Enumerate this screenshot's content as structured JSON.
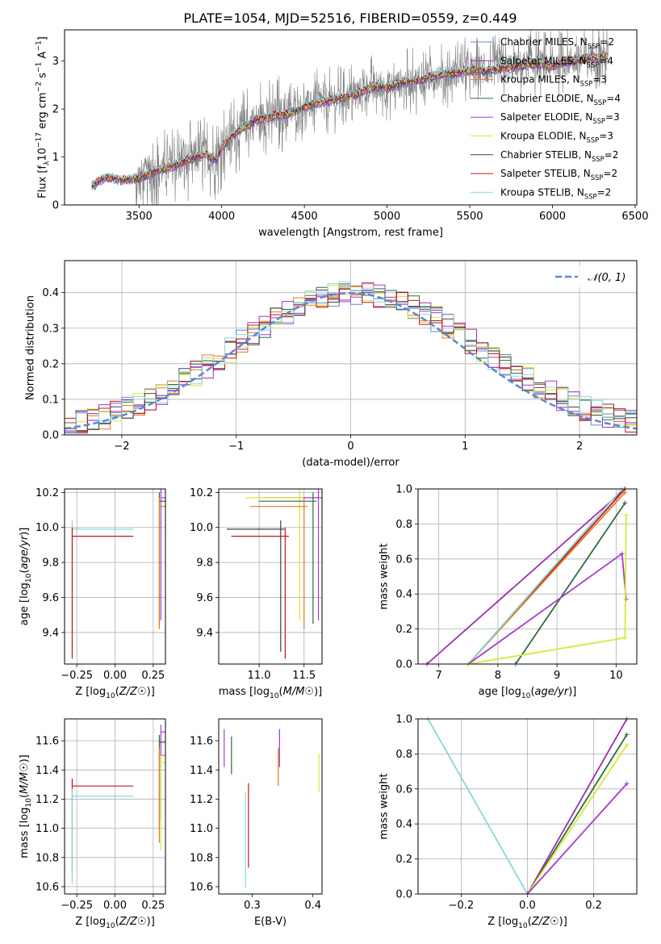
{
  "figure_title": "PLATE=1054, MJD=52516, FIBERID=0559, z=0.449",
  "colors": {
    "observed_spectrum": "#808080",
    "Chabrier MILES": "#5b8fd8",
    "Salpeter MILES": "#9b30b0",
    "Kroupa MILES": "#e07b1e",
    "Chabrier ELODIE": "#2e6b3e",
    "Salpeter ELODIE": "#a63bd0",
    "Kroupa ELODIE": "#d7e83a",
    "Chabrier STELIB": "#404040",
    "Salpeter STELIB": "#c0181c",
    "Kroupa STELIB": "#88d8d8",
    "normal_curve": "#5b87d4",
    "grid": "#b0b0b0"
  },
  "chart_data": [
    {
      "id": "spectrum",
      "type": "line",
      "xlabel": "wavelength [Angstrom, rest frame]",
      "ylabel": "Flux [f_λ10^-17 erg cm^-2 s^-1 A^-1]",
      "xlim": [
        3050,
        6510
      ],
      "ylim": [
        0,
        3.65
      ],
      "xticks": [
        3500,
        4000,
        4500,
        5000,
        5500,
        6000,
        6500
      ],
      "yticks": [
        0,
        1,
        2,
        3
      ],
      "grid": false,
      "legend_position": "top-right",
      "legend": [
        "Chabrier MILES, N_SSP=2",
        "Salpeter MILES, N_SSP=4",
        "Kroupa MILES, N_SSP=3",
        "Chabrier ELODIE, N_SSP=4",
        "Salpeter ELODIE, N_SSP=3",
        "Kroupa ELODIE, N_SSP=3",
        "Chabrier STELIB, N_SSP=2",
        "Salpeter STELIB, N_SSP=2",
        "Kroupa STELIB, N_SSP=2"
      ],
      "model_continuum_points": [
        [
          3210,
          0.38
        ],
        [
          3300,
          0.58
        ],
        [
          3400,
          0.52
        ],
        [
          3500,
          0.56
        ],
        [
          3600,
          0.7
        ],
        [
          3700,
          0.8
        ],
        [
          3800,
          0.95
        ],
        [
          3900,
          1.05
        ],
        [
          3970,
          0.95
        ],
        [
          4000,
          1.2
        ],
        [
          4100,
          1.55
        ],
        [
          4200,
          1.75
        ],
        [
          4300,
          1.85
        ],
        [
          4400,
          1.9
        ],
        [
          4500,
          2.05
        ],
        [
          4600,
          2.15
        ],
        [
          4700,
          2.2
        ],
        [
          4800,
          2.3
        ],
        [
          4900,
          2.45
        ],
        [
          5000,
          2.45
        ],
        [
          5100,
          2.55
        ],
        [
          5200,
          2.6
        ],
        [
          5300,
          2.7
        ],
        [
          5400,
          2.75
        ],
        [
          5500,
          2.8
        ],
        [
          5600,
          2.8
        ],
        [
          5700,
          2.85
        ],
        [
          5800,
          2.9
        ],
        [
          5900,
          2.95
        ],
        [
          6000,
          2.9
        ],
        [
          6100,
          3.0
        ],
        [
          6200,
          3.05
        ],
        [
          6300,
          3.1
        ],
        [
          6340,
          3.1
        ]
      ]
    },
    {
      "id": "residuals",
      "type": "histogram",
      "xlabel": "(data-model)/error",
      "ylabel": "Normed distribution",
      "xlim": [
        -2.5,
        2.5
      ],
      "ylim": [
        0,
        0.49
      ],
      "xticks": [
        -2,
        -1,
        0,
        1,
        2
      ],
      "yticks": [
        0.0,
        0.1,
        0.2,
        0.3,
        0.4
      ],
      "grid": true,
      "legend_position": "top-right",
      "legend": [
        "𝒩(0, 1)"
      ],
      "bin_width": 0.1,
      "normal_curve": {
        "mean": 0,
        "sigma": 1
      }
    },
    {
      "id": "Z_vs_age",
      "type": "scatter",
      "xlabel": "Z [log10(Z/Z☉)]",
      "ylabel": "age [log10(age/yr)]",
      "xlim": [
        -0.33,
        0.33
      ],
      "ylim": [
        9.22,
        10.22
      ],
      "xticks": [
        -0.25,
        0.0,
        0.25
      ],
      "yticks": [
        9.4,
        9.6,
        9.8,
        10.0,
        10.2
      ],
      "grid": true,
      "points": [
        {
          "series": "Salpeter ELODIE",
          "x": 0.3,
          "y": 10.17
        },
        {
          "series": "Chabrier ELODIE",
          "x": 0.29,
          "y": 10.15
        },
        {
          "series": "Kroupa MILES",
          "x": 0.29,
          "y": 10.12
        },
        {
          "series": "Kroupa STELIB",
          "x": -0.28,
          "y": 9.99
        },
        {
          "series": "Salpeter STELIB",
          "x": -0.28,
          "y": 9.95
        }
      ]
    },
    {
      "id": "mass_vs_age",
      "type": "scatter",
      "xlabel": "mass [log10(M/M☉)]",
      "ylabel": "",
      "xlim": [
        10.55,
        11.7
      ],
      "ylim": [
        9.22,
        10.22
      ],
      "xticks": [
        11.0,
        11.5
      ],
      "yticks": [
        9.4,
        9.6,
        9.8,
        10.0,
        10.2
      ],
      "grid": true,
      "points": [
        {
          "series": "Salpeter ELODIE",
          "x": 11.66,
          "y": 10.17
        },
        {
          "series": "Kroupa ELODIE",
          "x": 11.45,
          "y": 10.17
        },
        {
          "series": "Chabrier ELODIE",
          "x": 11.6,
          "y": 10.15
        },
        {
          "series": "Kroupa MILES",
          "x": 11.5,
          "y": 10.12
        },
        {
          "series": "Chabrier STELIB",
          "x": 11.24,
          "y": 9.99
        },
        {
          "series": "Salpeter STELIB",
          "x": 11.29,
          "y": 9.95
        }
      ]
    },
    {
      "id": "age_vs_massweight",
      "type": "line",
      "xlabel": "age [log10(age/yr)]",
      "ylabel": "mass weight",
      "xlim": [
        6.65,
        10.35
      ],
      "ylim": [
        0,
        1.0
      ],
      "xticks": [
        7,
        8,
        9,
        10
      ],
      "yticks": [
        0.0,
        0.2,
        0.4,
        0.6,
        0.8,
        1.0
      ],
      "grid": true,
      "lines": [
        {
          "series": "Salpeter MILES",
          "points": [
            [
              6.8,
              0.0
            ],
            [
              10.15,
              1.0
            ]
          ]
        },
        {
          "series": "Salpeter STELIB",
          "points": [
            [
              7.5,
              0.0
            ],
            [
              10.15,
              1.0
            ]
          ]
        },
        {
          "series": "Kroupa MILES",
          "points": [
            [
              7.5,
              0.0
            ],
            [
              10.15,
              0.98
            ]
          ]
        },
        {
          "series": "Kroupa STELIB",
          "points": [
            [
              7.5,
              0.0
            ],
            [
              10.1,
              1.0
            ]
          ]
        },
        {
          "series": "Chabrier ELODIE",
          "points": [
            [
              8.3,
              0.0
            ],
            [
              10.15,
              0.92
            ]
          ]
        },
        {
          "series": "Salpeter ELODIE",
          "points": [
            [
              7.5,
              0.0
            ],
            [
              10.1,
              0.63
            ],
            [
              10.17,
              0.37
            ]
          ]
        },
        {
          "series": "Kroupa ELODIE",
          "points": [
            [
              7.5,
              0.0
            ],
            [
              10.15,
              0.15
            ],
            [
              10.17,
              0.85
            ]
          ]
        }
      ]
    },
    {
      "id": "Z_vs_mass",
      "type": "scatter",
      "xlabel": "Z [log10(Z/Z☉)]",
      "ylabel": "mass [log10(M/M☉)]",
      "xlim": [
        -0.33,
        0.33
      ],
      "ylim": [
        10.55,
        11.75
      ],
      "xticks": [
        -0.25,
        0.0,
        0.25
      ],
      "yticks": [
        10.6,
        10.8,
        11.0,
        11.2,
        11.4,
        11.6
      ],
      "grid": true,
      "points": [
        {
          "series": "Salpeter ELODIE",
          "x": 0.3,
          "y": 11.66
        },
        {
          "series": "Chabrier ELODIE",
          "x": 0.29,
          "y": 11.59
        },
        {
          "series": "Kroupa MILES",
          "x": 0.29,
          "y": 11.5
        },
        {
          "series": "Kroupa ELODIE",
          "x": 0.3,
          "y": 11.45
        },
        {
          "series": "Salpeter STELIB",
          "x": -0.28,
          "y": 11.29
        },
        {
          "series": "Kroupa STELIB",
          "x": -0.28,
          "y": 11.22
        }
      ]
    },
    {
      "id": "ebv_vs_mass",
      "type": "scatter",
      "xlabel": "E(B-V)",
      "ylabel": "",
      "xlim": [
        0.245,
        0.415
      ],
      "ylim": [
        10.55,
        11.75
      ],
      "xticks": [
        0.3,
        0.4
      ],
      "yticks": [
        10.6,
        10.8,
        11.0,
        11.2,
        11.4,
        11.6
      ],
      "grid": false,
      "points": [
        {
          "series": "Salpeter ELODIE",
          "x": 0.254,
          "y": 11.55
        },
        {
          "series": "Chabrier ELODIE",
          "x": 0.266,
          "y": 11.5
        },
        {
          "series": "Kroupa STELIB",
          "x": 0.289,
          "y": 10.92
        },
        {
          "series": "Salpeter STELIB",
          "x": 0.294,
          "y": 11.02
        },
        {
          "series": "Kroupa MILES",
          "x": 0.343,
          "y": 11.42
        },
        {
          "series": "Salpeter MILES",
          "x": 0.345,
          "y": 11.55
        },
        {
          "series": "Kroupa ELODIE",
          "x": 0.41,
          "y": 11.38
        }
      ]
    },
    {
      "id": "Z_vs_massweight",
      "type": "line",
      "xlabel": "Z [log10(Z/Z☉)]",
      "ylabel": "mass weight",
      "xlim": [
        -0.33,
        0.33
      ],
      "ylim": [
        0,
        1.0
      ],
      "xticks": [
        -0.2,
        0.0,
        0.2
      ],
      "yticks": [
        0.0,
        0.2,
        0.4,
        0.6,
        0.8,
        1.0
      ],
      "grid": true,
      "lines": [
        {
          "series": "Kroupa STELIB",
          "points": [
            [
              -0.3,
              1.0
            ],
            [
              0.0,
              0.0
            ]
          ]
        },
        {
          "series": "Salpeter MILES",
          "points": [
            [
              0.0,
              0.0
            ],
            [
              0.3,
              1.0
            ]
          ]
        },
        {
          "series": "Chabrier ELODIE",
          "points": [
            [
              0.0,
              0.0
            ],
            [
              0.3,
              0.91
            ]
          ]
        },
        {
          "series": "Kroupa ELODIE",
          "points": [
            [
              0.0,
              0.0
            ],
            [
              0.3,
              0.85
            ]
          ]
        },
        {
          "series": "Salpeter ELODIE",
          "points": [
            [
              0.0,
              0.0
            ],
            [
              0.3,
              0.63
            ]
          ]
        }
      ]
    }
  ]
}
